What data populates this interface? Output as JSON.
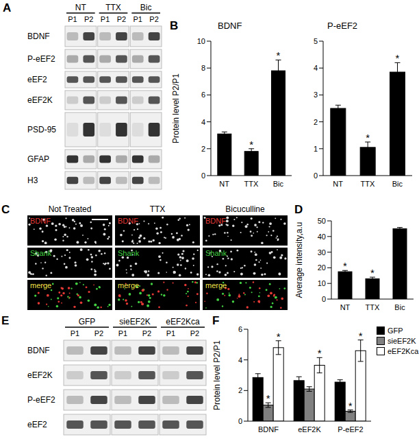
{
  "figure": {
    "A": {
      "panel": "A",
      "groups": [
        "NT",
        "TTX",
        "Bic"
      ],
      "lanes": [
        "P1",
        "P2"
      ],
      "rows": [
        "BDNF",
        "P-eEF2",
        "eEF2",
        "eEF2K",
        "PSD-95",
        "GFAP",
        "H3"
      ]
    },
    "C": {
      "panel": "C",
      "columns": [
        "Not Treated",
        "TTX",
        "Bicuculline"
      ],
      "rows": [
        "BDNF",
        "Shank",
        "merge"
      ]
    },
    "E": {
      "panel": "E",
      "groups": [
        "GFP",
        "sieEF2K",
        "eEF2Kca"
      ],
      "lanes": [
        "P1",
        "P2"
      ],
      "rows": [
        "BDNF",
        "eEF2K",
        "P-eEF2",
        "eEF2"
      ]
    }
  },
  "chart_data": [
    {
      "panel": "B",
      "type": "bar",
      "title": "BDNF",
      "y_label": "Protein level P2/P1",
      "categories": [
        "NT",
        "TTX",
        "Bic"
      ],
      "values": [
        3.1,
        1.8,
        7.8
      ],
      "errors": [
        0.15,
        0.2,
        0.8
      ],
      "significance": [
        null,
        "*",
        "*"
      ],
      "color": "#000000",
      "ylim": [
        0,
        10
      ],
      "yticks": [
        0,
        2,
        4,
        6,
        8,
        10
      ]
    },
    {
      "type": "bar",
      "title": "P-eEF2",
      "categories": [
        "NT",
        "TTX",
        "Bic"
      ],
      "values": [
        2.5,
        1.05,
        3.85
      ],
      "errors": [
        0.12,
        0.2,
        0.35
      ],
      "significance": [
        null,
        "*",
        "*"
      ],
      "color": "#000000",
      "ylim": [
        0,
        5
      ],
      "yticks": [
        0,
        1,
        2,
        3,
        4,
        5
      ]
    },
    {
      "panel": "D",
      "type": "bar",
      "y_label": "Average intensity,a.u",
      "categories": [
        "NT",
        "TTX",
        "Bic"
      ],
      "values": [
        17.5,
        13,
        45
      ],
      "errors": [
        0.8,
        1.0,
        0.8
      ],
      "significance": [
        "*",
        "*",
        null
      ],
      "color": "#000000",
      "ylim": [
        0,
        50
      ],
      "yticks": [
        0,
        10,
        20,
        30,
        40,
        50
      ]
    },
    {
      "panel": "F",
      "type": "bar",
      "y_label": "Protein level P2/P1",
      "categories": [
        "BDNF",
        "eEF2K",
        "P-eEF2"
      ],
      "series": [
        {
          "name": "GFP",
          "color": "#000000",
          "values": [
            2.85,
            2.65,
            2.55
          ],
          "errors": [
            0.25,
            0.25,
            0.15
          ],
          "significance": [
            null,
            null,
            null
          ]
        },
        {
          "name": "sieEF2K",
          "color": "#808080",
          "values": [
            1.05,
            2.1,
            0.65
          ],
          "errors": [
            0.15,
            0.15,
            0.08
          ],
          "significance": [
            "*",
            null,
            "*"
          ]
        },
        {
          "name": "eEF2Kca",
          "color": "#ffffff",
          "values": [
            4.8,
            3.65,
            4.6
          ],
          "errors": [
            0.45,
            0.5,
            0.7
          ],
          "significance": [
            "*",
            "*",
            "*"
          ]
        }
      ],
      "legend": "top right",
      "ylim": [
        0,
        6
      ],
      "yticks": [
        0,
        2,
        4,
        6
      ]
    }
  ]
}
